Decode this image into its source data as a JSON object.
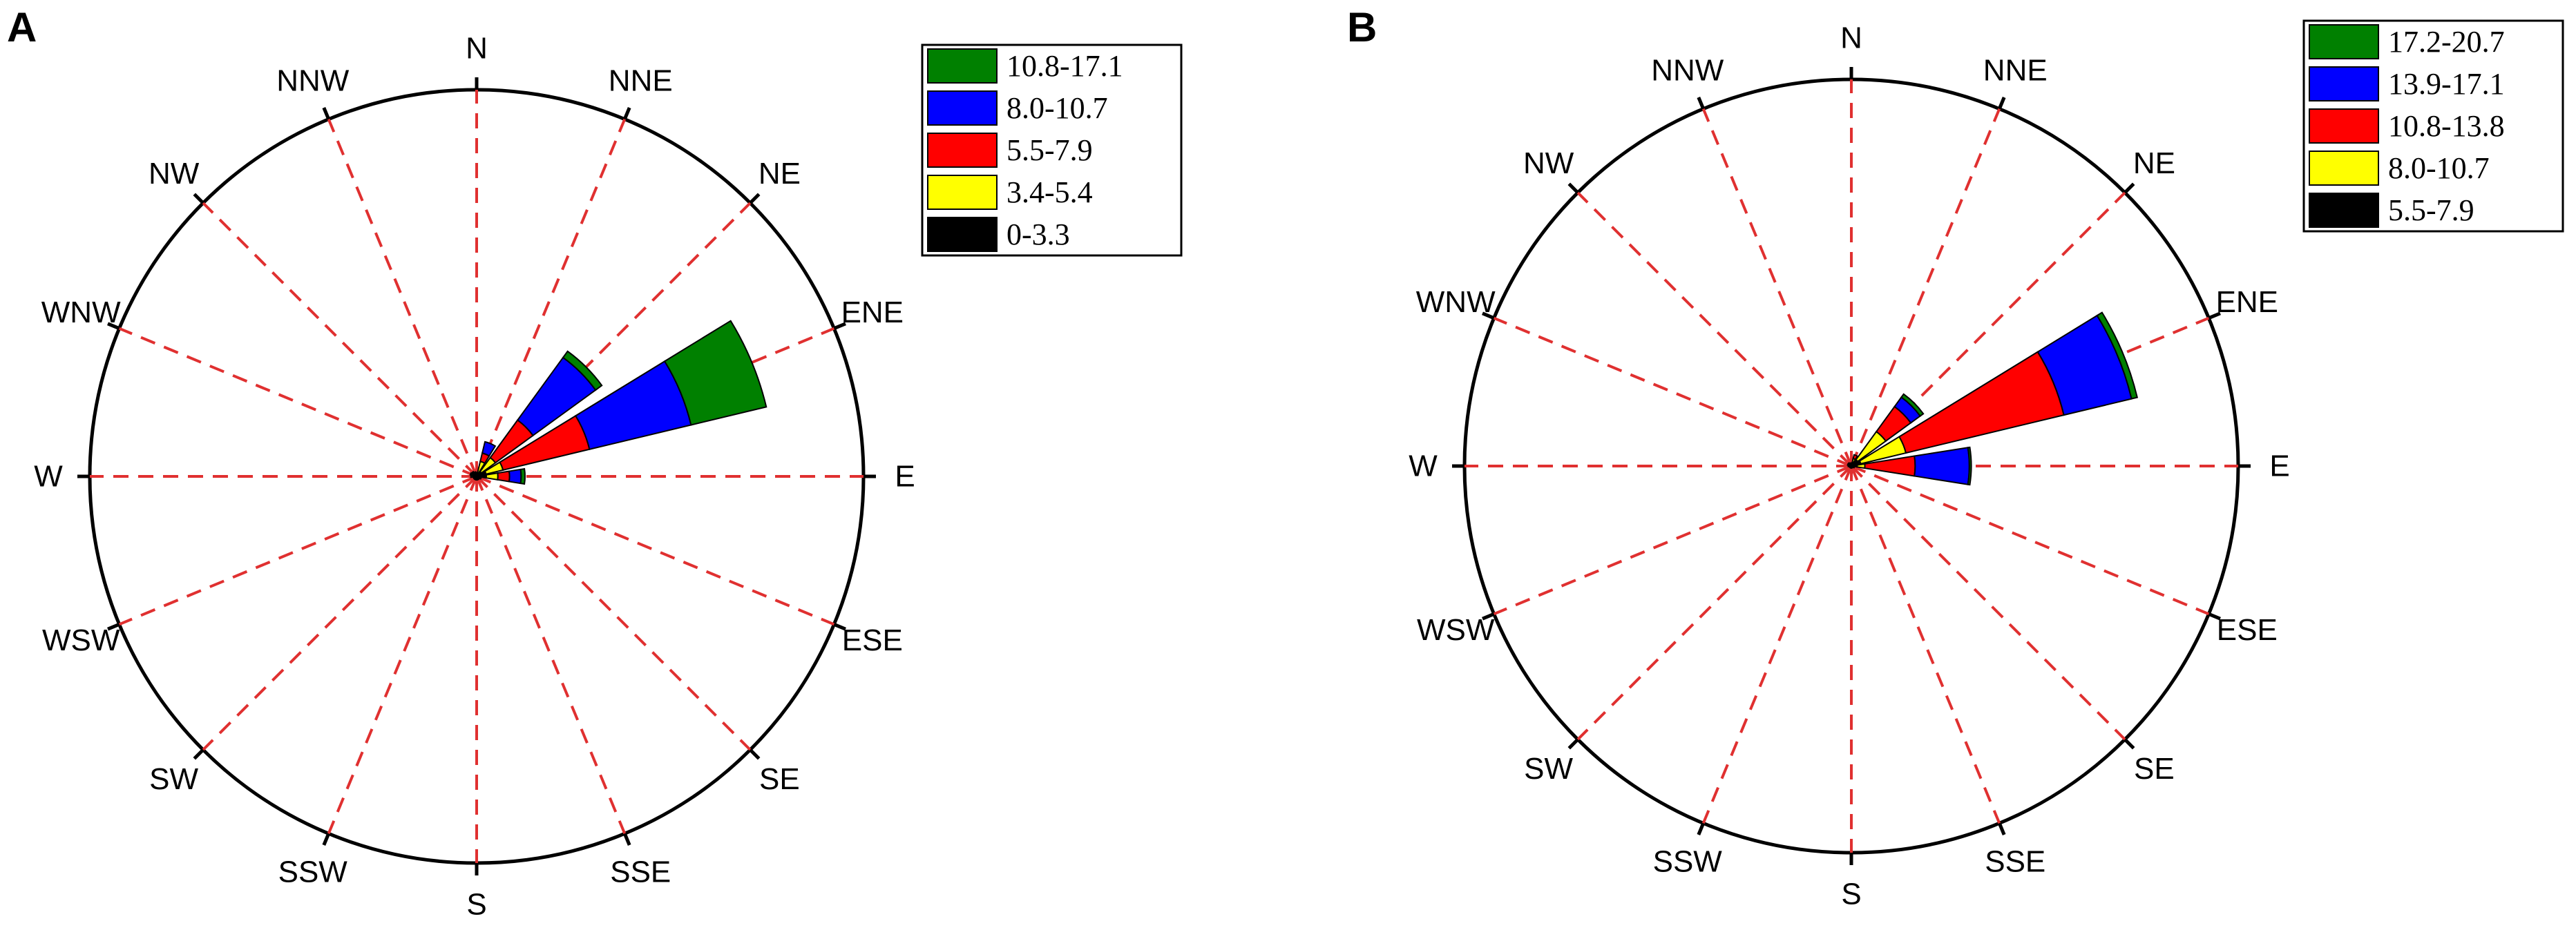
{
  "chart_data": [
    {
      "type": "windrose",
      "panel_label": "A",
      "directions": [
        "N",
        "NNE",
        "NE",
        "ENE",
        "E",
        "ESE",
        "SE",
        "SSE",
        "S",
        "SSW",
        "SW",
        "WSW",
        "W",
        "WNW",
        "NW",
        "NNW"
      ],
      "grid": true,
      "legend_placement": "top-right",
      "r_max": 100,
      "series": [
        {
          "name": "0-3.3",
          "color": "#000000",
          "values": [
            0.6,
            0.8,
            1.5,
            2.5,
            2.5,
            0.8,
            0.6,
            0.6,
            0.6,
            0.6,
            0.6,
            0.6,
            1.0,
            0.6,
            0.6,
            0.6
          ]
        },
        {
          "name": "3.4-5.4",
          "color": "#ffff00",
          "values": [
            0.4,
            3.2,
            4.5,
            4.5,
            3.0,
            0.4,
            0.3,
            0.3,
            0.3,
            0.3,
            0.3,
            0.3,
            0.5,
            0.8,
            0.6,
            0.6
          ]
        },
        {
          "name": "5.5-7.9",
          "color": "#ff0000",
          "values": [
            0,
            2.2,
            12,
            23,
            3,
            0,
            0,
            0,
            0,
            0,
            0,
            0,
            0,
            0.3,
            0.3,
            0
          ]
        },
        {
          "name": "8.0-10.7",
          "color": "#0000ff",
          "values": [
            0,
            3,
            20,
            27,
            3,
            0,
            0,
            0,
            0,
            0,
            0,
            0,
            0,
            0,
            0,
            0
          ]
        },
        {
          "name": "10.8-17.1",
          "color": "#008000",
          "values": [
            0,
            0,
            2,
            20,
            1,
            0,
            0,
            0,
            0,
            0,
            0,
            0,
            0,
            0,
            0,
            0
          ]
        }
      ]
    },
    {
      "type": "windrose",
      "panel_label": "B",
      "directions": [
        "N",
        "NNE",
        "NE",
        "ENE",
        "E",
        "ESE",
        "SE",
        "SSE",
        "S",
        "SSW",
        "SW",
        "WSW",
        "W",
        "WNW",
        "NW",
        "NNW"
      ],
      "grid": true,
      "legend_placement": "top-right",
      "r_max": 100,
      "series": [
        {
          "name": "5.5-7.9",
          "color": "#000000",
          "values": [
            0.5,
            1.0,
            2.0,
            2.5,
            1.5,
            0.5,
            0.3,
            0.3,
            0.3,
            0.3,
            0.3,
            0.3,
            0.5,
            0.5,
            0.5,
            0.5
          ]
        },
        {
          "name": "8.0-10.7",
          "color": "#ffff00",
          "values": [
            0.3,
            1.0,
            9.0,
            12.0,
            2.0,
            0.3,
            0.2,
            0.2,
            0.2,
            0.2,
            0.2,
            0.2,
            0.3,
            0.5,
            0.5,
            0.3
          ]
        },
        {
          "name": "10.8-13.8",
          "color": "#ff0000",
          "values": [
            0,
            1.0,
            8.0,
            42.0,
            13.0,
            0,
            0,
            0,
            0,
            0,
            0,
            0,
            0,
            0,
            0,
            0
          ]
        },
        {
          "name": "13.9-17.1",
          "color": "#0000ff",
          "values": [
            0,
            0,
            3.0,
            18.0,
            14.0,
            0,
            0,
            0,
            0,
            0,
            0,
            0,
            0,
            0,
            0,
            0
          ]
        },
        {
          "name": "17.2-20.7",
          "color": "#008000",
          "values": [
            0,
            0,
            1.0,
            1.5,
            0.5,
            0,
            0,
            0,
            0,
            0,
            0,
            0,
            0,
            0,
            0,
            0
          ]
        }
      ]
    }
  ]
}
